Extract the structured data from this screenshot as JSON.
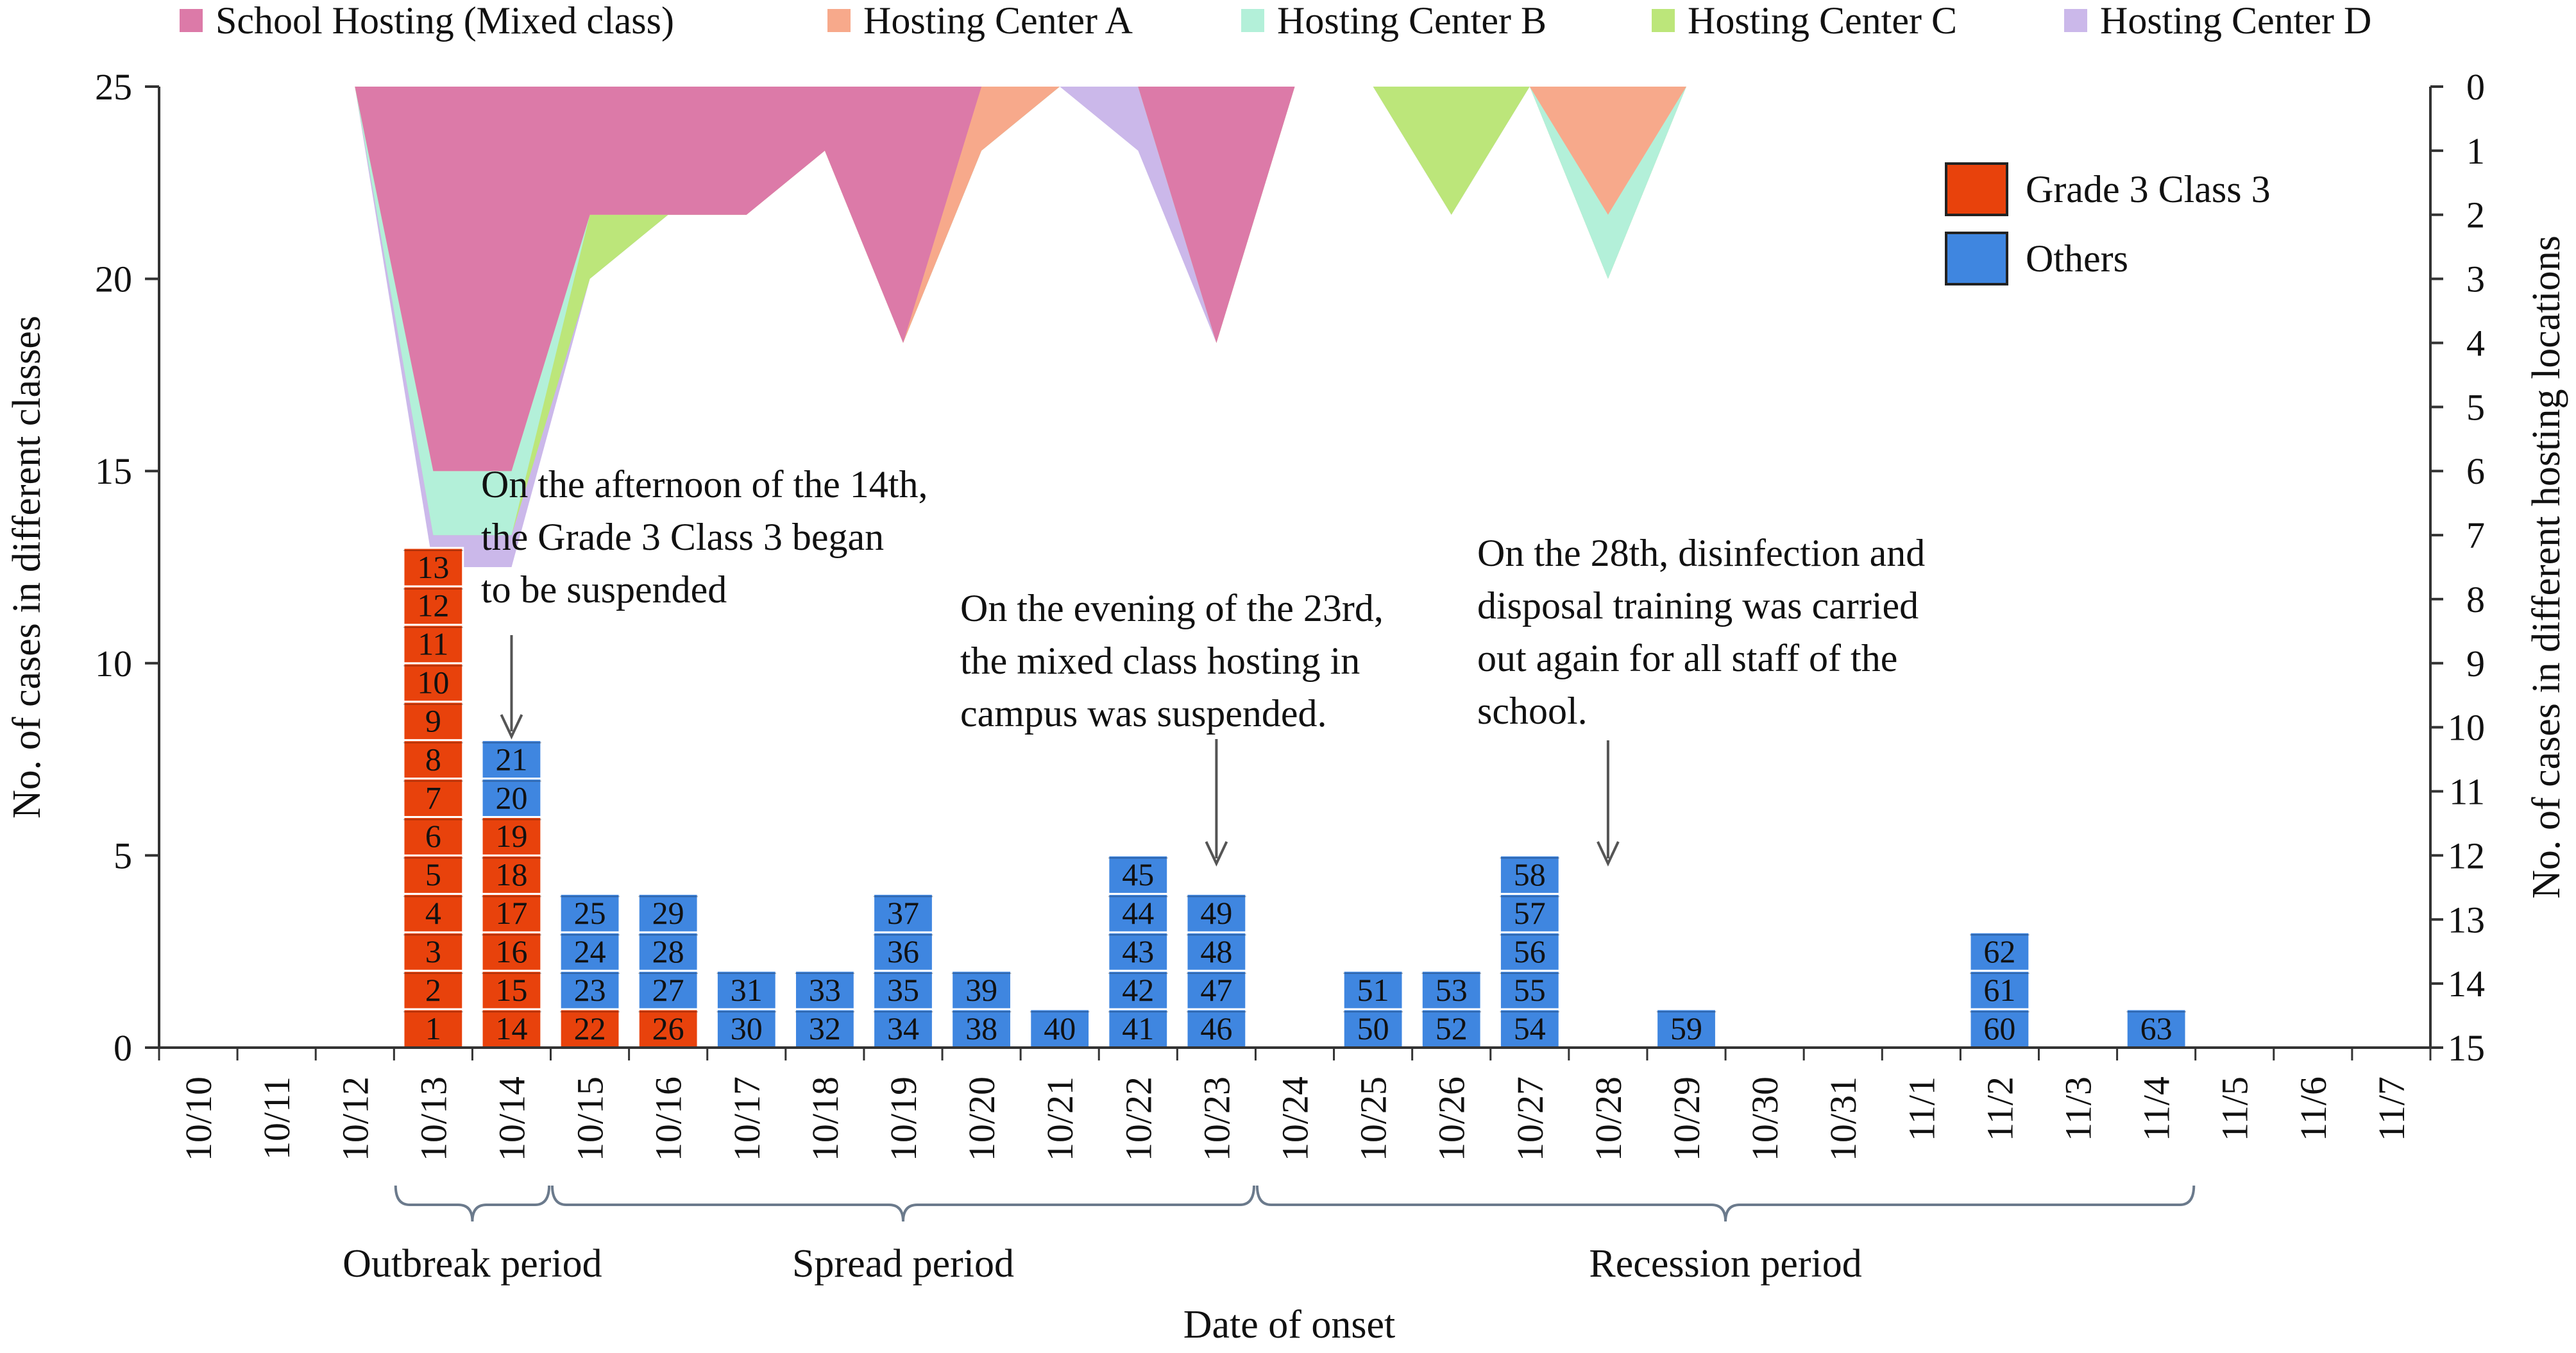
{
  "chart_data": {
    "type": "bar",
    "subtype": "stacked epidemic curve with inverted area overlay",
    "title": "",
    "xlabel": "Date of onset",
    "ylabel_left": "No. of cases in different classes",
    "ylabel_right": "No. of cases in different hosting locations",
    "ylim_left": [
      0,
      25
    ],
    "yticks_left": [
      0,
      5,
      10,
      15,
      20,
      25
    ],
    "ylim_right": [
      0,
      15
    ],
    "yticks_right": [
      0,
      1,
      2,
      3,
      4,
      5,
      6,
      7,
      8,
      9,
      10,
      11,
      12,
      13,
      14,
      15
    ],
    "right_axis_inverted": true,
    "grid": false,
    "categories": [
      "10/10",
      "10/11",
      "10/12",
      "10/13",
      "10/14",
      "10/15",
      "10/16",
      "10/17",
      "10/18",
      "10/19",
      "10/20",
      "10/21",
      "10/22",
      "10/23",
      "10/24",
      "10/25",
      "10/26",
      "10/27",
      "10/28",
      "10/29",
      "10/30",
      "10/31",
      "11/1",
      "11/2",
      "11/3",
      "11/4",
      "11/5",
      "11/6",
      "11/7"
    ],
    "bar_legend": [
      {
        "name": "Grade 3 Class 3",
        "color": "#e8420c"
      },
      {
        "name": "Others",
        "color": "#3f86e0"
      }
    ],
    "bar_series": [
      {
        "name": "Grade 3 Class 3",
        "values": [
          0,
          0,
          0,
          13,
          6,
          1,
          1,
          0,
          0,
          0,
          0,
          0,
          0,
          0,
          0,
          0,
          0,
          0,
          0,
          0,
          0,
          0,
          0,
          0,
          0,
          0,
          0,
          0,
          0
        ]
      },
      {
        "name": "Others",
        "values": [
          0,
          0,
          0,
          0,
          2,
          3,
          3,
          2,
          2,
          4,
          2,
          1,
          5,
          4,
          0,
          2,
          2,
          5,
          0,
          1,
          0,
          0,
          0,
          3,
          0,
          1,
          0,
          0,
          0
        ]
      }
    ],
    "case_numbers": [
      [],
      [],
      [],
      [
        {
          "n": "1",
          "c": "Grade 3 Class 3"
        },
        {
          "n": "2",
          "c": "Grade 3 Class 3"
        },
        {
          "n": "3",
          "c": "Grade 3 Class 3"
        },
        {
          "n": "4",
          "c": "Grade 3 Class 3"
        },
        {
          "n": "5",
          "c": "Grade 3 Class 3"
        },
        {
          "n": "6",
          "c": "Grade 3 Class 3"
        },
        {
          "n": "7",
          "c": "Grade 3 Class 3"
        },
        {
          "n": "8",
          "c": "Grade 3 Class 3"
        },
        {
          "n": "9",
          "c": "Grade 3 Class 3"
        },
        {
          "n": "10",
          "c": "Grade 3 Class 3"
        },
        {
          "n": "11",
          "c": "Grade 3 Class 3"
        },
        {
          "n": "12",
          "c": "Grade 3 Class 3"
        },
        {
          "n": "13",
          "c": "Grade 3 Class 3"
        }
      ],
      [
        {
          "n": "14",
          "c": "Grade 3 Class 3"
        },
        {
          "n": "15",
          "c": "Grade 3 Class 3"
        },
        {
          "n": "16",
          "c": "Grade 3 Class 3"
        },
        {
          "n": "17",
          "c": "Grade 3 Class 3"
        },
        {
          "n": "18",
          "c": "Grade 3 Class 3"
        },
        {
          "n": "19",
          "c": "Grade 3 Class 3"
        },
        {
          "n": "20",
          "c": "Others"
        },
        {
          "n": "21",
          "c": "Others"
        }
      ],
      [
        {
          "n": "22",
          "c": "Grade 3 Class 3"
        },
        {
          "n": "23",
          "c": "Others"
        },
        {
          "n": "24",
          "c": "Others"
        },
        {
          "n": "25",
          "c": "Others"
        }
      ],
      [
        {
          "n": "26",
          "c": "Grade 3 Class 3"
        },
        {
          "n": "27",
          "c": "Others"
        },
        {
          "n": "28",
          "c": "Others"
        },
        {
          "n": "29",
          "c": "Others"
        }
      ],
      [
        {
          "n": "30",
          "c": "Others"
        },
        {
          "n": "31",
          "c": "Others"
        }
      ],
      [
        {
          "n": "32",
          "c": "Others"
        },
        {
          "n": "33",
          "c": "Others"
        }
      ],
      [
        {
          "n": "34",
          "c": "Others"
        },
        {
          "n": "35",
          "c": "Others"
        },
        {
          "n": "36",
          "c": "Others"
        },
        {
          "n": "37",
          "c": "Others"
        }
      ],
      [
        {
          "n": "38",
          "c": "Others"
        },
        {
          "n": "39",
          "c": "Others"
        }
      ],
      [
        {
          "n": "40",
          "c": "Others"
        }
      ],
      [
        {
          "n": "41",
          "c": "Others"
        },
        {
          "n": "42",
          "c": "Others"
        },
        {
          "n": "43",
          "c": "Others"
        },
        {
          "n": "44",
          "c": "Others"
        },
        {
          "n": "45",
          "c": "Others"
        }
      ],
      [
        {
          "n": "46",
          "c": "Others"
        },
        {
          "n": "47",
          "c": "Others"
        },
        {
          "n": "48",
          "c": "Others"
        },
        {
          "n": "49",
          "c": "Others"
        }
      ],
      [],
      [
        {
          "n": "50",
          "c": "Others"
        },
        {
          "n": "51",
          "c": "Others"
        }
      ],
      [
        {
          "n": "52",
          "c": "Others"
        },
        {
          "n": "53",
          "c": "Others"
        }
      ],
      [
        {
          "n": "54",
          "c": "Others"
        },
        {
          "n": "55",
          "c": "Others"
        },
        {
          "n": "56",
          "c": "Others"
        },
        {
          "n": "57",
          "c": "Others"
        },
        {
          "n": "58",
          "c": "Others"
        }
      ],
      [],
      [
        {
          "n": "59",
          "c": "Others"
        }
      ],
      [],
      [],
      [],
      [
        {
          "n": "60",
          "c": "Others"
        },
        {
          "n": "61",
          "c": "Others"
        },
        {
          "n": "62",
          "c": "Others"
        }
      ],
      [],
      [
        {
          "n": "63",
          "c": "Others"
        }
      ],
      [],
      [],
      []
    ],
    "area_legend": [
      {
        "name": "School Hosting (Mixed class)",
        "color": "#dc7aa8"
      },
      {
        "name": "Hosting Center A",
        "color": "#f7a98b"
      },
      {
        "name": "Hosting Center B",
        "color": "#b3f0d9"
      },
      {
        "name": "Hosting Center C",
        "color": "#bce67a"
      },
      {
        "name": "Hosting Center D",
        "color": "#cbb8ea"
      }
    ],
    "area_series_cumulative": {
      "x": [
        2,
        3,
        4,
        5,
        6,
        7,
        8,
        9,
        10,
        11,
        12,
        13,
        14,
        15,
        16,
        17,
        18,
        19
      ],
      "School Hosting (Mixed class)": [
        0,
        6,
        6,
        2,
        2,
        2,
        1,
        4,
        0,
        0,
        0,
        4,
        0,
        null,
        null,
        null,
        null,
        null
      ],
      "Hosting Center A": [
        0,
        6,
        6,
        2,
        2,
        2,
        1,
        4,
        1,
        0,
        0,
        4,
        0,
        0,
        0,
        0,
        2,
        0
      ],
      "Hosting Center B": [
        0,
        7,
        7,
        2,
        2,
        2,
        1,
        4,
        1,
        0,
        0,
        4,
        0,
        0,
        0,
        0,
        3,
        0
      ],
      "Hosting Center C": [
        0,
        7,
        7,
        3,
        2,
        2,
        1,
        4,
        1,
        0,
        0,
        4,
        0,
        0,
        2,
        0,
        3,
        0
      ],
      "Hosting Center D": [
        0,
        7.5,
        7.5,
        3,
        2,
        2,
        1,
        4,
        1,
        0,
        1,
        4,
        0,
        0,
        2,
        0,
        3,
        0
      ]
    },
    "annotations": [
      {
        "lines": [
          "On the afternoon of the 14th,",
          "the Grade 3 Class 3 began",
          "to be suspended"
        ],
        "target": "10/14"
      },
      {
        "lines": [
          "On the evening of the 23rd,",
          "the mixed class hosting in",
          "campus was suspended."
        ],
        "target": "10/23"
      },
      {
        "lines": [
          "On the 28th, disinfection and",
          "disposal training was carried",
          "out again for all  staff of the",
          "school."
        ],
        "target": "10/28"
      }
    ],
    "periods": [
      {
        "label": "Outbreak period",
        "from": "10/13",
        "to": "10/14"
      },
      {
        "label": "Spread period",
        "from": "10/15",
        "to": "10/23"
      },
      {
        "label": "Recession period",
        "from": "10/24",
        "to": "11/4"
      }
    ]
  }
}
